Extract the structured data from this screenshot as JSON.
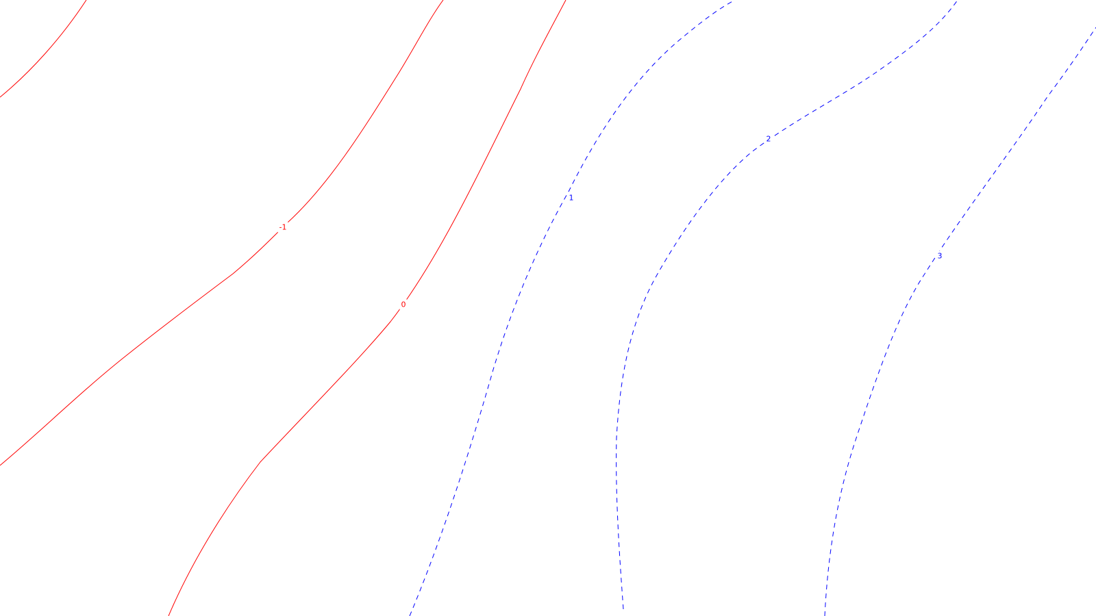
{
  "chart_data": {
    "type": "contour",
    "title": "",
    "xlabel": "",
    "ylabel": "",
    "grid": false,
    "legend": "none",
    "styles": {
      "positive": {
        "color": "#0000ff",
        "dash": "dashed"
      },
      "negative_or_zero": {
        "color": "#ff0000",
        "dash": "solid"
      }
    },
    "contours": [
      {
        "level": -2,
        "label": ""
      },
      {
        "level": -1,
        "label": "-1"
      },
      {
        "level": 0,
        "label": "0"
      },
      {
        "level": 1,
        "label": "1"
      },
      {
        "level": 2,
        "label": "2"
      },
      {
        "level": 3,
        "label": "3"
      }
    ]
  }
}
